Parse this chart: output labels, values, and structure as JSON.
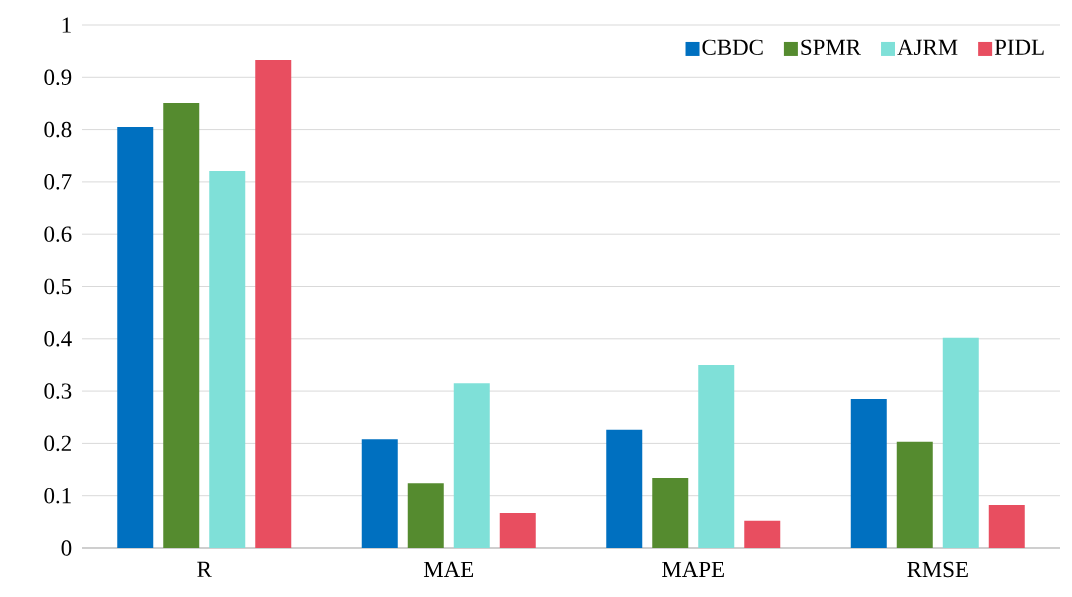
{
  "chart_data": {
    "type": "bar",
    "categories": [
      "R",
      "MAE",
      "MAPE",
      "RMSE"
    ],
    "series": [
      {
        "name": "CBDC",
        "color": "#0070c0",
        "values": [
          0.805,
          0.208,
          0.226,
          0.285
        ]
      },
      {
        "name": "SPMR",
        "color": "#558b2f",
        "values": [
          0.851,
          0.124,
          0.134,
          0.203
        ]
      },
      {
        "name": "AJRM",
        "color": "#7fe0d8",
        "values": [
          0.721,
          0.315,
          0.35,
          0.402
        ]
      },
      {
        "name": "PIDL",
        "color": "#e84e60",
        "values": [
          0.933,
          0.067,
          0.052,
          0.082
        ]
      }
    ],
    "ylim": [
      0,
      1
    ],
    "yticks": [
      0,
      0.1,
      0.2,
      0.3,
      0.4,
      0.5,
      0.6,
      0.7,
      0.8,
      0.9,
      1
    ],
    "grid": "y",
    "legend": "top right"
  }
}
